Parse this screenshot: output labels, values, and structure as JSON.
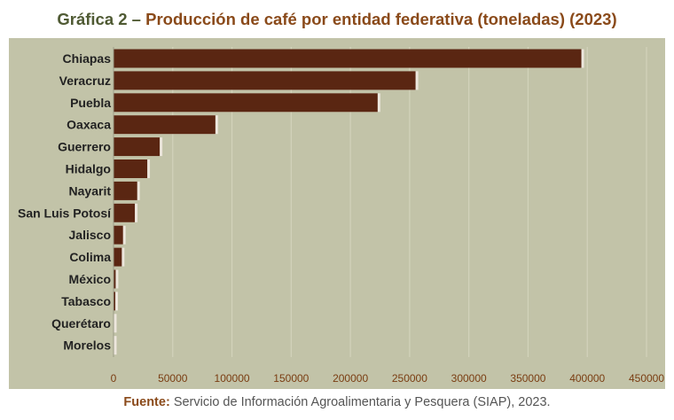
{
  "header": {
    "prefix": "Gráfica 2 –",
    "title": "Producción de café por entidad federativa (toneladas) (2023)"
  },
  "footer": {
    "label": "Fuente:",
    "text": "Servicio de Información Agroalimentaria y Pesquera (SIAP), 2023."
  },
  "colors": {
    "bar": "#5a2612",
    "panel": "#c2c3a8",
    "grid": "#d3d3bb",
    "accent": "#8a4a1a"
  },
  "chart_data": {
    "type": "bar",
    "orientation": "horizontal",
    "title": "Producción de café por entidad federativa (toneladas) (2023)",
    "xlabel": "",
    "ylabel": "",
    "categories": [
      "Chiapas",
      "Veracruz",
      "Puebla",
      "Oaxaca",
      "Guerrero",
      "Hidalgo",
      "Nayarit",
      "San Luis Potosí",
      "Jalisco",
      "Colima",
      "México",
      "Tabasco",
      "Querétaro",
      "Morelos"
    ],
    "values": [
      395000,
      255000,
      223000,
      86000,
      39000,
      28500,
      20000,
      18000,
      8000,
      7000,
      1800,
      1500,
      300,
      150
    ],
    "xlim": [
      0,
      450000
    ],
    "xticks": [
      0,
      50000,
      100000,
      150000,
      200000,
      250000,
      300000,
      350000,
      400000,
      450000
    ],
    "xtick_labels": [
      "0",
      "50000",
      "100000",
      "150000",
      "200000",
      "250000",
      "300000",
      "350000",
      "400000",
      "450000"
    ],
    "grid": true,
    "legend": "none"
  }
}
